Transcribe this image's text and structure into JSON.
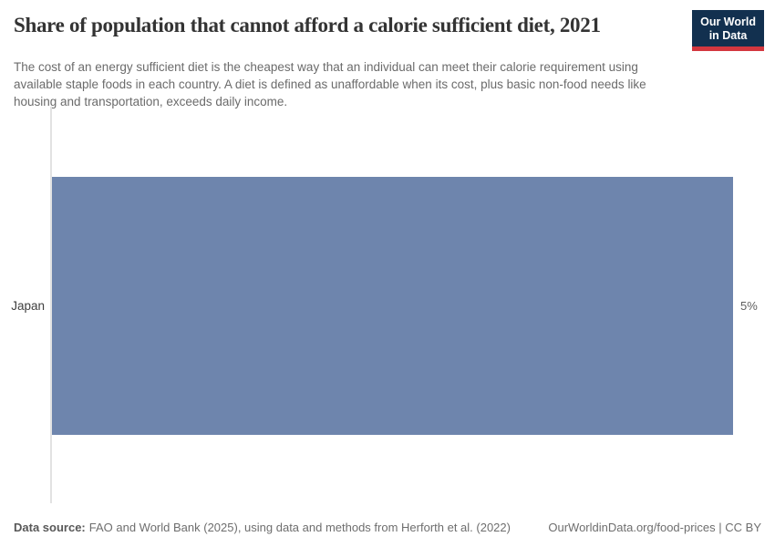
{
  "header": {
    "title": "Share of population that cannot afford a calorie sufficient diet, 2021",
    "subtitle": "The cost of an energy sufficient diet is the cheapest way that an individual can meet their calorie requirement using available staple foods in each country. A diet is defined as unaffordable when its cost, plus basic non-food needs like housing and transportation, exceeds daily income.",
    "logo": {
      "line1": "Our World",
      "line2": "in Data"
    }
  },
  "chart_data": {
    "type": "bar",
    "orientation": "horizontal",
    "title": "Share of population that cannot afford a calorie sufficient diet, 2021",
    "categories": [
      "Japan"
    ],
    "values": [
      5
    ],
    "value_labels": [
      "5%"
    ],
    "xlabel": "",
    "ylabel": "",
    "xlim": [
      0,
      5
    ],
    "grid": false,
    "legend": false
  },
  "footer": {
    "datasource_label": "Data source:",
    "datasource_text": "FAO and World Bank (2025), using data and methods from Herforth et al. (2022)",
    "license_text": "OurWorldinData.org/food-prices | CC BY"
  },
  "colors": {
    "bar-blue": "#6e85ad",
    "logo-navy": "#12304f",
    "logo-red": "#d3373f",
    "axis-gray": "#e2e2e2"
  }
}
